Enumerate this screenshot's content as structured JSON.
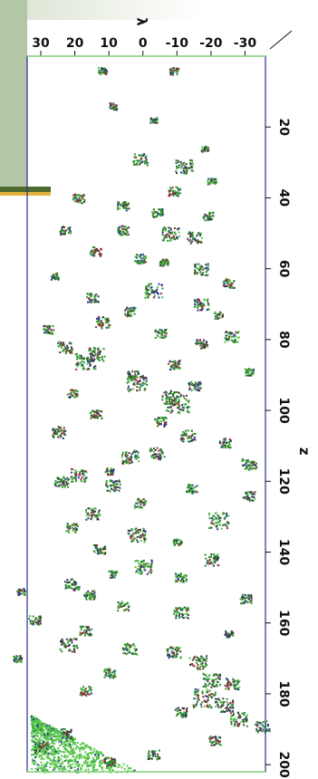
{
  "chart_data": {
    "type": "scatter",
    "title": "",
    "orientation": "rotated-90",
    "x_axis": {
      "label": "z",
      "ticks": [
        20,
        40,
        60,
        80,
        100,
        120,
        140,
        160,
        180,
        200
      ],
      "range": [
        0,
        202
      ],
      "position": "right"
    },
    "y_axis": {
      "label": "λ",
      "ticks": [
        30,
        20,
        10,
        0,
        -10,
        -20,
        -30
      ],
      "tick_labels": [
        "30",
        "20",
        "10",
        "0",
        "-10",
        "-20",
        "-30"
      ],
      "range": [
        34,
        -36
      ],
      "position": "top"
    },
    "colors": {
      "frame": "#2a2f8f",
      "frame_edge": "#8fdc7a",
      "cluster_main": "#2e8f2e",
      "cluster_light": "#55c64a",
      "cluster_red": "#a3243b",
      "cluster_blue": "#2a3a8f",
      "cluster_dark": "#3a3a3a"
    },
    "series": [
      {
        "values": [
          {
            "z": 4,
            "l": 12,
            "r": 1.5
          },
          {
            "z": 4,
            "l": -9,
            "r": 1.5
          },
          {
            "z": 14,
            "l": 9,
            "r": 1.5
          },
          {
            "z": 18,
            "l": -3,
            "r": 1.2
          },
          {
            "z": 26,
            "l": -18,
            "r": 1.2
          },
          {
            "z": 29,
            "l": 1,
            "r": 2.5
          },
          {
            "z": 31,
            "l": -12,
            "r": 3
          },
          {
            "z": 35,
            "l": -20,
            "r": 1.5
          },
          {
            "z": 38,
            "l": -9,
            "r": 2
          },
          {
            "z": 40,
            "l": 19,
            "r": 2
          },
          {
            "z": 42,
            "l": 6,
            "r": 2
          },
          {
            "z": 44,
            "l": -4,
            "r": 2
          },
          {
            "z": 45,
            "l": -19,
            "r": 1.8
          },
          {
            "z": 49,
            "l": 23,
            "r": 1.8
          },
          {
            "z": 49,
            "l": 6,
            "r": 2
          },
          {
            "z": 50,
            "l": -8,
            "r": 3
          },
          {
            "z": 51,
            "l": -15,
            "r": 2.5
          },
          {
            "z": 55,
            "l": 14,
            "r": 2
          },
          {
            "z": 57,
            "l": 1,
            "r": 2
          },
          {
            "z": 58,
            "l": -6,
            "r": 1.5
          },
          {
            "z": 60,
            "l": -17,
            "r": 2.5
          },
          {
            "z": 62,
            "l": 26,
            "r": 1.5
          },
          {
            "z": 64,
            "l": -25,
            "r": 2
          },
          {
            "z": 66,
            "l": -3,
            "r": 3
          },
          {
            "z": 68,
            "l": 15,
            "r": 2
          },
          {
            "z": 70,
            "l": -17,
            "r": 2.5
          },
          {
            "z": 72,
            "l": 4,
            "r": 2
          },
          {
            "z": 73,
            "l": -22,
            "r": 1.5
          },
          {
            "z": 75,
            "l": 12,
            "r": 2.5
          },
          {
            "z": 77,
            "l": 28,
            "r": 1.8
          },
          {
            "z": 78,
            "l": -5,
            "r": 2
          },
          {
            "z": 79,
            "l": -26,
            "r": 2.5
          },
          {
            "z": 81,
            "l": -17,
            "r": 2
          },
          {
            "z": 82,
            "l": 23,
            "r": 2.5
          },
          {
            "z": 84,
            "l": 14,
            "r": 3
          },
          {
            "z": 86,
            "l": 17,
            "r": 3.5
          },
          {
            "z": 87,
            "l": -9,
            "r": 2
          },
          {
            "z": 89,
            "l": -31,
            "r": 1.5
          },
          {
            "z": 90,
            "l": 3,
            "r": 2
          },
          {
            "z": 92,
            "l": 2,
            "r": 3.5
          },
          {
            "z": 93,
            "l": -15,
            "r": 2
          },
          {
            "z": 95,
            "l": 21,
            "r": 1.8
          },
          {
            "z": 96,
            "l": -8,
            "r": 3
          },
          {
            "z": 98,
            "l": -10,
            "r": 4
          },
          {
            "z": 101,
            "l": 14,
            "r": 2
          },
          {
            "z": 103,
            "l": -5,
            "r": 2
          },
          {
            "z": 106,
            "l": 25,
            "r": 2.5
          },
          {
            "z": 107,
            "l": -13,
            "r": 2.5
          },
          {
            "z": 109,
            "l": -24,
            "r": 2
          },
          {
            "z": 112,
            "l": -4,
            "r": 2.5
          },
          {
            "z": 113,
            "l": 4,
            "r": 3
          },
          {
            "z": 115,
            "l": -31,
            "r": 2.5
          },
          {
            "z": 117,
            "l": 10,
            "r": 1.5
          },
          {
            "z": 118,
            "l": 19,
            "r": 3
          },
          {
            "z": 120,
            "l": 24,
            "r": 2.5
          },
          {
            "z": 121,
            "l": 9,
            "r": 2.5
          },
          {
            "z": 122,
            "l": -14,
            "r": 2
          },
          {
            "z": 124,
            "l": -31,
            "r": 2
          },
          {
            "z": 126,
            "l": 1,
            "r": 2
          },
          {
            "z": 129,
            "l": 15,
            "r": 2.5
          },
          {
            "z": 131,
            "l": -22,
            "r": 3.5
          },
          {
            "z": 133,
            "l": 21,
            "r": 2
          },
          {
            "z": 135,
            "l": 2,
            "r": 3
          },
          {
            "z": 137,
            "l": -10,
            "r": 1.5
          },
          {
            "z": 139,
            "l": 13,
            "r": 2
          },
          {
            "z": 142,
            "l": -20,
            "r": 2.5
          },
          {
            "z": 144,
            "l": 0,
            "r": 3
          },
          {
            "z": 146,
            "l": 9,
            "r": 1.5
          },
          {
            "z": 147,
            "l": -11,
            "r": 2
          },
          {
            "z": 149,
            "l": 21,
            "r": 2.5
          },
          {
            "z": 151,
            "l": 36,
            "r": 1.5
          },
          {
            "z": 152,
            "l": 16,
            "r": 2
          },
          {
            "z": 153,
            "l": -30,
            "r": 2
          },
          {
            "z": 155,
            "l": 6,
            "r": 2
          },
          {
            "z": 157,
            "l": -11,
            "r": 2.5
          },
          {
            "z": 159,
            "l": 32,
            "r": 2
          },
          {
            "z": 162,
            "l": 17,
            "r": 2
          },
          {
            "z": 163,
            "l": -25,
            "r": 1.5
          },
          {
            "z": 166,
            "l": 22,
            "r": 3
          },
          {
            "z": 167,
            "l": 4,
            "r": 2.5
          },
          {
            "z": 168,
            "l": -9,
            "r": 2.5
          },
          {
            "z": 170,
            "l": 37,
            "r": 1.5
          },
          {
            "z": 171,
            "l": -16,
            "r": 3
          },
          {
            "z": 174,
            "l": 10,
            "r": 2
          },
          {
            "z": 176,
            "l": -20,
            "r": 3
          },
          {
            "z": 177,
            "l": -26,
            "r": 2.5
          },
          {
            "z": 179,
            "l": 17,
            "r": 2
          },
          {
            "z": 181,
            "l": -18,
            "r": 4
          },
          {
            "z": 183,
            "l": -24,
            "r": 3
          },
          {
            "z": 185,
            "l": -11,
            "r": 2
          },
          {
            "z": 187,
            "l": -28,
            "r": 3
          },
          {
            "z": 189,
            "l": -35,
            "r": 2.5
          },
          {
            "z": 191,
            "l": 23,
            "r": 2
          },
          {
            "z": 193,
            "l": -21,
            "r": 2
          },
          {
            "z": 195,
            "l": 30,
            "r": 2.5
          },
          {
            "z": 197,
            "l": -3,
            "r": 2
          },
          {
            "z": 199,
            "l": 10,
            "r": 2
          }
        ]
      }
    ],
    "dense_band": {
      "z_min": 186,
      "z_max": 202,
      "l_max": 32,
      "l_min": 0
    },
    "grid": false,
    "legend": "none"
  }
}
